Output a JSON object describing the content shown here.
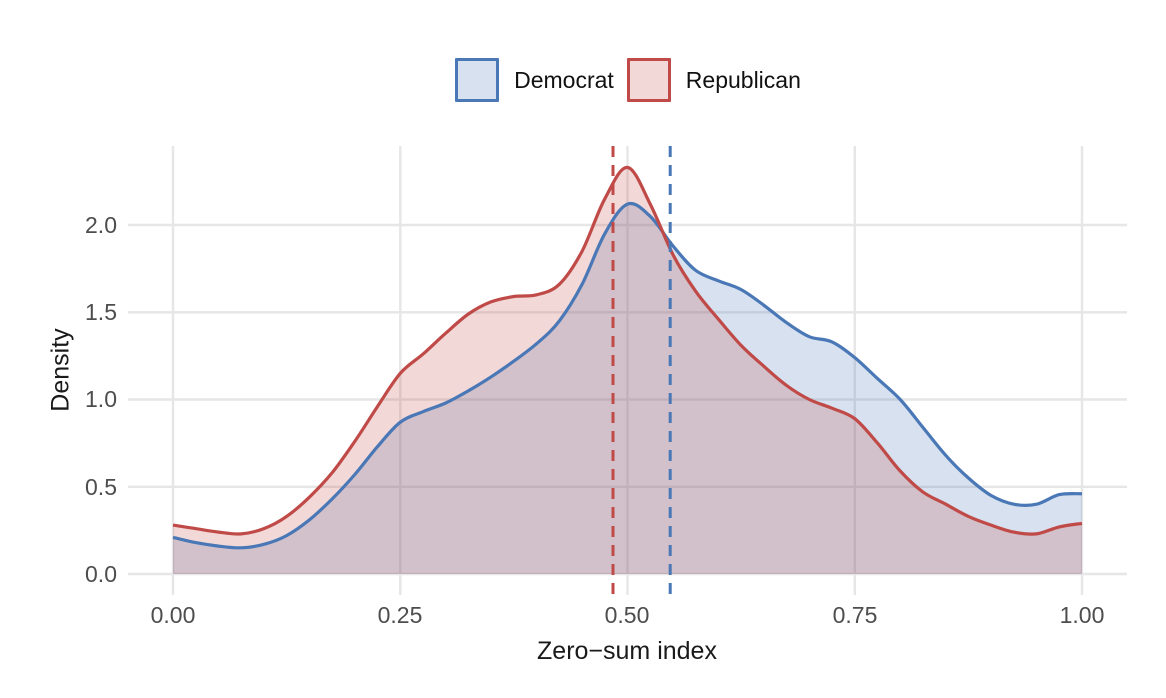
{
  "figure": {
    "background_color": "#ffffff",
    "grid_color": "#e6e6e6",
    "tick_text_color": "#4d4d4d",
    "axis_title_color": "#1a1a1a"
  },
  "legend": {
    "position": "top-center",
    "items": [
      {
        "label": "Democrat"
      },
      {
        "label": "Republican"
      }
    ]
  },
  "chart_data": {
    "type": "area",
    "kind": "kernel-density",
    "title": "",
    "xlabel": "Zero−sum index",
    "ylabel": "Density",
    "xlim": [
      -0.05,
      1.05
    ],
    "ylim": [
      0,
      2.45
    ],
    "grid": true,
    "legend_position": "top-center",
    "x_ticks": [
      0,
      0.25,
      0.5,
      0.75,
      1.0
    ],
    "x_tick_labels": [
      "0.00",
      "0.25",
      "0.50",
      "0.75",
      "1.00"
    ],
    "y_ticks": [
      0,
      0.5,
      1.0,
      1.5,
      2.0
    ],
    "y_tick_labels": [
      "0.0",
      "0.5",
      "1.0",
      "1.5",
      "2.0"
    ],
    "x": [
      0,
      0.025,
      0.05,
      0.075,
      0.1,
      0.125,
      0.15,
      0.175,
      0.2,
      0.225,
      0.25,
      0.275,
      0.3,
      0.325,
      0.35,
      0.375,
      0.4,
      0.425,
      0.45,
      0.475,
      0.5,
      0.525,
      0.55,
      0.575,
      0.6,
      0.625,
      0.65,
      0.675,
      0.7,
      0.725,
      0.75,
      0.775,
      0.8,
      0.825,
      0.85,
      0.875,
      0.9,
      0.925,
      0.95,
      0.975,
      1.0
    ],
    "series": [
      {
        "name": "Democrat",
        "line_color": "#4a78b6",
        "fill_color": "rgba(74,120,182,0.22)",
        "mean_line_x": 0.547,
        "values": [
          0.21,
          0.18,
          0.16,
          0.15,
          0.17,
          0.22,
          0.31,
          0.43,
          0.57,
          0.73,
          0.87,
          0.93,
          0.98,
          1.05,
          1.13,
          1.22,
          1.32,
          1.45,
          1.66,
          1.95,
          2.12,
          2.05,
          1.88,
          1.74,
          1.68,
          1.63,
          1.54,
          1.44,
          1.36,
          1.33,
          1.24,
          1.12,
          1.0,
          0.84,
          0.68,
          0.55,
          0.45,
          0.4,
          0.4,
          0.455,
          0.46
        ]
      },
      {
        "name": "Republican",
        "line_color": "#c04a47",
        "fill_color": "rgba(192,74,71,0.21)",
        "mean_line_x": 0.484,
        "values": [
          0.28,
          0.26,
          0.24,
          0.23,
          0.26,
          0.33,
          0.44,
          0.58,
          0.76,
          0.96,
          1.15,
          1.26,
          1.38,
          1.49,
          1.56,
          1.59,
          1.6,
          1.66,
          1.85,
          2.15,
          2.33,
          2.12,
          1.83,
          1.62,
          1.46,
          1.31,
          1.19,
          1.08,
          1.0,
          0.95,
          0.89,
          0.75,
          0.59,
          0.47,
          0.4,
          0.33,
          0.28,
          0.24,
          0.23,
          0.27,
          0.29
        ]
      }
    ]
  }
}
